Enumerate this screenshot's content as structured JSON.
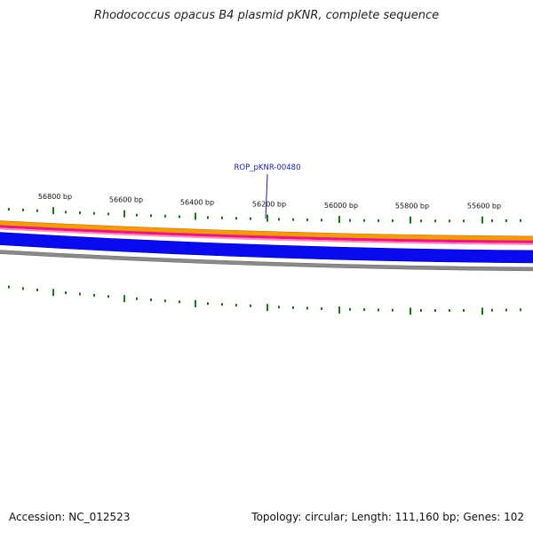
{
  "title": "Rhodococcus opacus B4 plasmid pKNR, complete sequence",
  "footer": {
    "accession": "Accession: NC_012523",
    "summary": "Topology: circular; Length: 111,160 bp; Genes: 102"
  },
  "ticks": [
    "56800 bp",
    "56600 bp",
    "56400 bp",
    "56200 bp",
    "56000 bp",
    "55800 bp",
    "55600 bp"
  ],
  "gene": {
    "label": "ROP_pKNR-00480"
  },
  "colors": {
    "band_orange": "#f59a10",
    "band_magenta": "#e8187c",
    "band_pink": "#ff8ac0",
    "band_blue": "#0a0aee",
    "band_gray": "#8a8a8a",
    "tick": "#1a7a1a",
    "gene_line": "#1a1aa6"
  }
}
